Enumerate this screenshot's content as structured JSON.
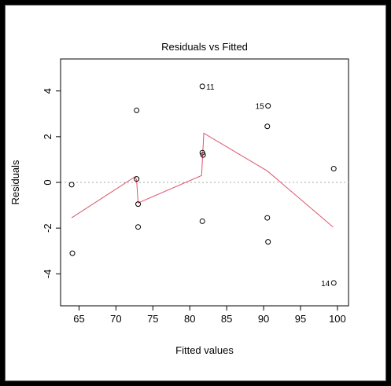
{
  "chart_data": {
    "type": "scatter",
    "title": "Residuals vs Fitted",
    "xlabel": "Fitted values",
    "ylabel": "Residuals",
    "xlim": [
      62.5,
      101.5
    ],
    "ylim": [
      -5.4,
      5.4
    ],
    "x_ticks": [
      65,
      70,
      75,
      80,
      85,
      90,
      95,
      100
    ],
    "y_ticks": [
      -4,
      -2,
      0,
      2,
      4
    ],
    "points": [
      {
        "x": 64.0,
        "y": -0.1
      },
      {
        "x": 64.1,
        "y": -3.1
      },
      {
        "x": 72.8,
        "y": 3.15
      },
      {
        "x": 72.8,
        "y": 0.15
      },
      {
        "x": 73.0,
        "y": -0.95
      },
      {
        "x": 73.0,
        "y": -1.95
      },
      {
        "x": 81.7,
        "y": 4.2,
        "label": "11"
      },
      {
        "x": 81.7,
        "y": 1.3
      },
      {
        "x": 81.8,
        "y": 1.2
      },
      {
        "x": 81.7,
        "y": -1.7
      },
      {
        "x": 90.6,
        "y": 3.35,
        "label": "15"
      },
      {
        "x": 90.5,
        "y": 2.45
      },
      {
        "x": 90.5,
        "y": -1.55
      },
      {
        "x": 90.6,
        "y": -2.6
      },
      {
        "x": 99.5,
        "y": 0.6
      },
      {
        "x": 99.5,
        "y": -4.4,
        "label": "14"
      }
    ],
    "smooth_line": {
      "color": "#DF536B",
      "x": [
        64.0,
        72.6,
        72.8,
        73.0,
        81.6,
        81.9,
        90.5,
        99.4
      ],
      "y": [
        -1.55,
        0.25,
        0.1,
        -0.9,
        0.3,
        2.15,
        0.5,
        -1.95
      ]
    },
    "zero_line_color": "#AAAAAA"
  }
}
